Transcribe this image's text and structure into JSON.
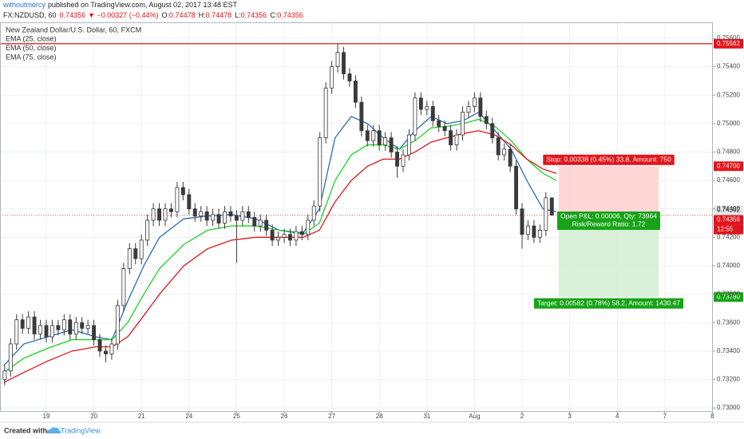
{
  "header": {
    "author": "withoutmercy",
    "published": "published on TradingView.com, August 02, 2017 13:48 EST",
    "symbol": "FX:NZDUSD, 60",
    "price": "0.74356",
    "change": "▼ −0.00327 (−0.44%)",
    "ohlc": [
      {
        "key": "O:",
        "value": "0.74478"
      },
      {
        "key": "H:",
        "value": "0.74478"
      },
      {
        "key": "L:",
        "value": "0.74356"
      },
      {
        "key": "C:",
        "value": "0.74356"
      }
    ]
  },
  "footer": {
    "created": "Created with",
    "brand": "TradingView"
  },
  "chart_data": {
    "type": "candlestick",
    "title": "New Zealand Dollar/U.S. Dollar, 60, FXCM",
    "up_color": "#ffffff",
    "down_color": "#3a3a3a",
    "wick_color": "#3a3a3a",
    "grid": true,
    "grid_color": "#eef0f3",
    "xlim": [
      0.027,
      15.01
    ],
    "ylim": [
      0.72978,
      0.75712
    ],
    "xticks": [
      {
        "value": 1,
        "label": "19"
      },
      {
        "value": 2,
        "label": "20"
      },
      {
        "value": 3,
        "label": "21"
      },
      {
        "value": 4,
        "label": "24"
      },
      {
        "value": 5,
        "label": "25"
      },
      {
        "value": 6,
        "label": "26"
      },
      {
        "value": 7,
        "label": "27"
      },
      {
        "value": 8,
        "label": "28"
      },
      {
        "value": 9,
        "label": "31"
      },
      {
        "value": 10,
        "label": "Aug"
      },
      {
        "value": 11,
        "label": "2"
      },
      {
        "value": 12,
        "label": "3"
      },
      {
        "value": 13,
        "label": "4"
      },
      {
        "value": 14,
        "label": "7"
      },
      {
        "value": 15,
        "label": "8"
      }
    ],
    "yticks": [
      {
        "value": 0.73,
        "label": "0.73000"
      },
      {
        "value": 0.732,
        "label": "0.73200"
      },
      {
        "value": 0.734,
        "label": "0.73400"
      },
      {
        "value": 0.736,
        "label": "0.73600"
      },
      {
        "value": 0.738,
        "label": "0.73800"
      },
      {
        "value": 0.74,
        "label": "0.74000"
      },
      {
        "value": 0.742,
        "label": "0.74200"
      },
      {
        "value": 0.744,
        "label": "0.74400"
      },
      {
        "value": 0.746,
        "label": "0.74600"
      },
      {
        "value": 0.748,
        "label": "0.74800"
      },
      {
        "value": 0.75,
        "label": "0.75000"
      },
      {
        "value": 0.752,
        "label": "0.75200"
      },
      {
        "value": 0.754,
        "label": "0.75400"
      },
      {
        "value": 0.756,
        "label": "0.75600"
      }
    ],
    "x": [
      0.125,
      0.25,
      0.375,
      0.5,
      0.625,
      0.75,
      0.875,
      1,
      1.125,
      1.25,
      1.375,
      1.5,
      1.625,
      1.75,
      1.875,
      2,
      2.125,
      2.25,
      2.375,
      2.5,
      2.625,
      2.75,
      2.875,
      3,
      3.125,
      3.25,
      3.375,
      3.5,
      3.625,
      3.75,
      3.875,
      4,
      4.125,
      4.25,
      4.375,
      4.5,
      4.625,
      4.75,
      4.875,
      5,
      5.125,
      5.25,
      5.375,
      5.5,
      5.625,
      5.75,
      5.875,
      6,
      6.125,
      6.25,
      6.375,
      6.5,
      6.625,
      6.75,
      6.875,
      7,
      7.125,
      7.25,
      7.375,
      7.5,
      7.625,
      7.75,
      7.875,
      8,
      8.125,
      8.25,
      8.375,
      8.5,
      8.625,
      8.75,
      8.875,
      9,
      9.125,
      9.25,
      9.375,
      9.5,
      9.625,
      9.75,
      9.875,
      10,
      10.125,
      10.25,
      10.375,
      10.5,
      10.625,
      10.75,
      10.875,
      11,
      11.125,
      11.25,
      11.375,
      11.5,
      11.625
    ],
    "open": [
      0.732,
      0.7326,
      0.7345,
      0.7362,
      0.7356,
      0.7364,
      0.7352,
      0.7358,
      0.735,
      0.7358,
      0.7355,
      0.7362,
      0.7352,
      0.736,
      0.7356,
      0.7358,
      0.7348,
      0.734,
      0.7338,
      0.7345,
      0.7372,
      0.7398,
      0.7412,
      0.7405,
      0.7418,
      0.7432,
      0.744,
      0.7432,
      0.744,
      0.7438,
      0.7455,
      0.745,
      0.744,
      0.7435,
      0.7438,
      0.7432,
      0.7436,
      0.743,
      0.7438,
      0.7435,
      0.7432,
      0.7438,
      0.7434,
      0.7428,
      0.7432,
      0.7425,
      0.7418,
      0.742,
      0.7422,
      0.7418,
      0.7424,
      0.7422,
      0.7432,
      0.7442,
      0.749,
      0.7525,
      0.754,
      0.755,
      0.7535,
      0.753,
      0.7515,
      0.7495,
      0.7488,
      0.7495,
      0.7485,
      0.749,
      0.748,
      0.747,
      0.7478,
      0.7492,
      0.7518,
      0.751,
      0.7512,
      0.7502,
      0.7498,
      0.7495,
      0.7485,
      0.7492,
      0.7508,
      0.7512,
      0.7518,
      0.7505,
      0.75,
      0.749,
      0.7478,
      0.7482,
      0.747,
      0.744,
      0.7422,
      0.7428,
      0.742,
      0.7425,
      0.74478
    ],
    "high": [
      0.733,
      0.7349,
      0.7366,
      0.7366,
      0.7368,
      0.7368,
      0.7362,
      0.7362,
      0.7362,
      0.7362,
      0.7366,
      0.7366,
      0.7364,
      0.7364,
      0.7362,
      0.7362,
      0.7352,
      0.7344,
      0.7349,
      0.7376,
      0.7402,
      0.7416,
      0.7416,
      0.7422,
      0.7436,
      0.7444,
      0.7444,
      0.7444,
      0.7444,
      0.7459,
      0.7459,
      0.7454,
      0.7444,
      0.7442,
      0.7442,
      0.744,
      0.744,
      0.7442,
      0.7442,
      0.7439,
      0.7442,
      0.7442,
      0.7438,
      0.7436,
      0.7436,
      0.7429,
      0.7424,
      0.7426,
      0.7426,
      0.7428,
      0.7428,
      0.7436,
      0.7446,
      0.7494,
      0.7529,
      0.7544,
      0.7556,
      0.7554,
      0.7539,
      0.7534,
      0.7519,
      0.7499,
      0.7499,
      0.7499,
      0.7494,
      0.7494,
      0.7484,
      0.7482,
      0.7496,
      0.7522,
      0.7522,
      0.7516,
      0.7516,
      0.7506,
      0.7502,
      0.7499,
      0.7496,
      0.7512,
      0.7516,
      0.7522,
      0.7522,
      0.7509,
      0.7504,
      0.7494,
      0.7486,
      0.7486,
      0.7474,
      0.7444,
      0.7432,
      0.7432,
      0.7429,
      0.74518,
      0.74478
    ],
    "low": [
      0.7316,
      0.7322,
      0.7341,
      0.7352,
      0.7352,
      0.7348,
      0.7348,
      0.7346,
      0.7346,
      0.7351,
      0.7351,
      0.7348,
      0.7348,
      0.7352,
      0.7352,
      0.7344,
      0.7336,
      0.7332,
      0.7334,
      0.7341,
      0.7368,
      0.7394,
      0.7401,
      0.7401,
      0.7414,
      0.7428,
      0.7428,
      0.7428,
      0.7434,
      0.7434,
      0.7446,
      0.7436,
      0.7431,
      0.7431,
      0.7428,
      0.7428,
      0.7426,
      0.7426,
      0.7431,
      0.7402,
      0.7428,
      0.743,
      0.7424,
      0.7424,
      0.7421,
      0.7414,
      0.7414,
      0.7416,
      0.7414,
      0.7414,
      0.7418,
      0.7418,
      0.7428,
      0.7438,
      0.7486,
      0.7521,
      0.7536,
      0.7531,
      0.7526,
      0.7511,
      0.7491,
      0.7484,
      0.7484,
      0.7481,
      0.7481,
      0.7476,
      0.7462,
      0.7466,
      0.7474,
      0.7488,
      0.7506,
      0.7506,
      0.7498,
      0.7494,
      0.7491,
      0.7481,
      0.7481,
      0.7488,
      0.7504,
      0.7508,
      0.7501,
      0.7496,
      0.7486,
      0.7474,
      0.7474,
      0.7466,
      0.7436,
      0.7412,
      0.7418,
      0.7416,
      0.7416,
      0.7421,
      0.74356
    ],
    "close": [
      0.7326,
      0.7345,
      0.7362,
      0.7356,
      0.7364,
      0.7352,
      0.7358,
      0.735,
      0.7358,
      0.7355,
      0.7362,
      0.7352,
      0.736,
      0.7356,
      0.7358,
      0.7348,
      0.734,
      0.7338,
      0.7345,
      0.7372,
      0.7398,
      0.7412,
      0.7405,
      0.7418,
      0.7432,
      0.744,
      0.7432,
      0.744,
      0.7438,
      0.7455,
      0.745,
      0.744,
      0.7435,
      0.7438,
      0.7432,
      0.7436,
      0.743,
      0.7438,
      0.7435,
      0.7432,
      0.7438,
      0.7434,
      0.7428,
      0.7432,
      0.7425,
      0.7418,
      0.742,
      0.7422,
      0.7418,
      0.7424,
      0.7422,
      0.7432,
      0.7442,
      0.749,
      0.7525,
      0.754,
      0.755,
      0.7535,
      0.753,
      0.7515,
      0.7495,
      0.7488,
      0.7495,
      0.7485,
      0.749,
      0.748,
      0.747,
      0.7478,
      0.7492,
      0.7518,
      0.751,
      0.7512,
      0.7502,
      0.7498,
      0.7495,
      0.7485,
      0.7492,
      0.7508,
      0.7512,
      0.7518,
      0.7505,
      0.75,
      0.749,
      0.7478,
      0.7482,
      0.747,
      0.744,
      0.7422,
      0.7428,
      0.742,
      0.7425,
      0.74478,
      0.74356
    ],
    "series": [
      {
        "name": "EMA (25, close)",
        "color": "#2d6db5",
        "x": [
          0.11,
          0.53,
          1.03,
          1.54,
          2.04,
          2.38,
          2.71,
          3.05,
          3.38,
          3.89,
          4.39,
          4.89,
          5.4,
          5.9,
          6.4,
          6.74,
          7.07,
          7.41,
          7.75,
          8.08,
          8.42,
          8.75,
          9.09,
          9.42,
          9.76,
          10.09,
          10.43,
          10.77,
          11.1,
          11.44,
          11.72
        ],
        "values": [
          0.733,
          0.7345,
          0.735,
          0.7355,
          0.735,
          0.7348,
          0.7375,
          0.74,
          0.742,
          0.7433,
          0.7435,
          0.7436,
          0.7433,
          0.7425,
          0.7423,
          0.744,
          0.749,
          0.7505,
          0.75,
          0.749,
          0.7482,
          0.7495,
          0.7505,
          0.75,
          0.7502,
          0.7508,
          0.7495,
          0.7482,
          0.746,
          0.744,
          0.7438
        ]
      },
      {
        "name": "EMA (50, close)",
        "color": "#1fd12b",
        "x": [
          0.11,
          0.53,
          1.03,
          1.54,
          2.04,
          2.38,
          2.71,
          3.05,
          3.38,
          3.89,
          4.39,
          4.89,
          5.4,
          5.9,
          6.4,
          6.74,
          7.07,
          7.41,
          7.75,
          8.08,
          8.42,
          8.75,
          9.09,
          9.42,
          9.76,
          10.09,
          10.43,
          10.77,
          11.1,
          11.44,
          11.72
        ],
        "values": [
          0.7325,
          0.7335,
          0.7342,
          0.7348,
          0.7348,
          0.7348,
          0.736,
          0.738,
          0.7398,
          0.7415,
          0.7425,
          0.7428,
          0.7428,
          0.7425,
          0.7422,
          0.743,
          0.746,
          0.7478,
          0.7485,
          0.7485,
          0.7482,
          0.7488,
          0.7497,
          0.7498,
          0.75,
          0.7503,
          0.7498,
          0.7488,
          0.7475,
          0.7465,
          0.746
        ]
      },
      {
        "name": "EMA (75, close)",
        "color": "#e3141b",
        "x": [
          0.11,
          0.53,
          1.03,
          1.54,
          2.04,
          2.38,
          2.71,
          3.05,
          3.38,
          3.89,
          4.39,
          4.89,
          5.4,
          5.9,
          6.4,
          6.74,
          7.07,
          7.41,
          7.75,
          8.08,
          8.42,
          8.75,
          9.09,
          9.42,
          9.76,
          10.09,
          10.43,
          10.77,
          11.1,
          11.44,
          11.72
        ],
        "values": [
          0.7318,
          0.7325,
          0.7333,
          0.734,
          0.7343,
          0.7343,
          0.735,
          0.7365,
          0.738,
          0.74,
          0.7412,
          0.7418,
          0.742,
          0.742,
          0.742,
          0.7425,
          0.7445,
          0.746,
          0.747,
          0.7475,
          0.7475,
          0.748,
          0.7487,
          0.749,
          0.7493,
          0.7495,
          0.7492,
          0.7485,
          0.7475,
          0.7468,
          0.7465
        ]
      }
    ],
    "hline": {
      "value": 0.75562,
      "label": "0.75562",
      "color": "#e3141b"
    },
    "last_price": {
      "value": 0.74356,
      "label": "0.74356",
      "color": "#e3141b",
      "countdown": "12:55"
    },
    "entry_price": {
      "value": 0.74362,
      "label": "0.74362"
    },
    "position": {
      "x_start": 11.77,
      "x_end": 13.87,
      "entry": 0.74362,
      "stop": 0.747,
      "target": 0.7378,
      "stop_tick": "0.74700",
      "target_tick": "0.73780",
      "stop_text": "Stop: 0.00338 (0.45%) 33.8, Amount: 750",
      "pnl_text": "Open P&L: 0.00006, Qty: 73964",
      "rr_text": "Risk/Reward Ratio: 1.72",
      "target_text": "Target: 0.00582 (0.78%) 58.2, Amount: 1430.47",
      "stop_color": "#e3141b",
      "target_color": "#17a317"
    }
  }
}
